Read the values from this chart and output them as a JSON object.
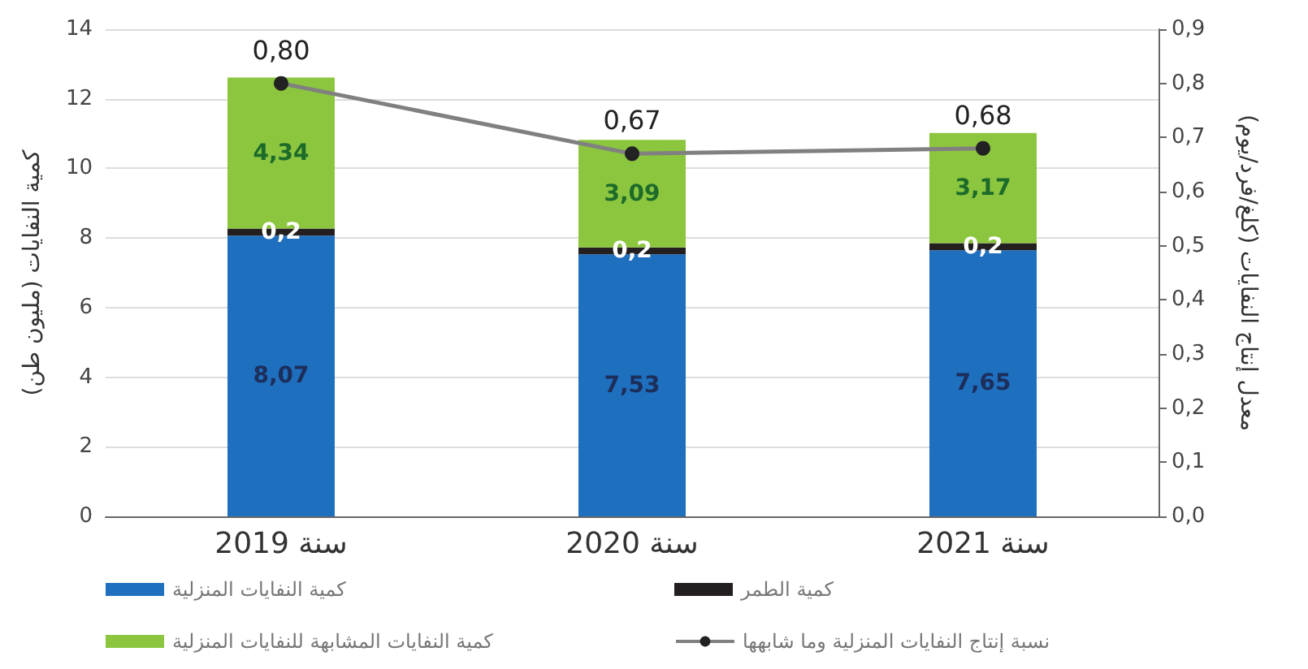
{
  "chart_data": {
    "type": "bar",
    "stacked": true,
    "categories": [
      "سنة 2019",
      "سنة 2020",
      "سنة 2021"
    ],
    "ylabel": "كمية النفايات (مليون طن)",
    "y2label": "معدل إنتاج النفايات (كلغ/فرد/يوم)",
    "series": [
      {
        "name": "كمية النفايات المنزلية",
        "color": "#1f6fbf",
        "values": [
          8.07,
          7.53,
          7.65
        ],
        "value_labels": [
          "8,07",
          "7,53",
          "7,65"
        ]
      },
      {
        "name": "كمية الطمر",
        "color": "#231f20",
        "values": [
          0.2,
          0.2,
          0.2
        ],
        "value_labels": [
          "0,2",
          "0,2",
          "0,2"
        ]
      },
      {
        "name": "كمية النفايات المشابهة للنفايات المنزلية",
        "color": "#8cc63f",
        "values": [
          4.34,
          3.09,
          3.17
        ],
        "value_labels": [
          "4,34",
          "3,09",
          "3,17"
        ]
      },
      {
        "name": "نسبة إنتاج النفايات المنزلية وما شابهها",
        "type": "line",
        "axis": "y2",
        "color": "#808080",
        "marker": "circle",
        "values": [
          0.8,
          0.67,
          0.68
        ],
        "value_labels": [
          "0,80",
          "0,67",
          "0,68"
        ]
      }
    ],
    "ylim": [
      0,
      14
    ],
    "yticks": [
      0,
      2,
      4,
      6,
      8,
      10,
      12,
      14
    ],
    "y2lim": [
      0,
      0.9
    ],
    "y2ticks": [
      {
        "value": 0,
        "label": "0,0"
      },
      {
        "value": 0.1,
        "label": "0,1"
      },
      {
        "value": 0.2,
        "label": "0,2"
      },
      {
        "value": 0.3,
        "label": "0,3"
      },
      {
        "value": 0.4,
        "label": "0,4"
      },
      {
        "value": 0.5,
        "label": "0,5"
      },
      {
        "value": 0.6,
        "label": "0,6"
      },
      {
        "value": 0.7,
        "label": "0,7"
      },
      {
        "value": 0.8,
        "label": "0,8"
      },
      {
        "value": 0.9,
        "label": "0,9"
      }
    ],
    "grid": "y",
    "legend": "bottom"
  }
}
